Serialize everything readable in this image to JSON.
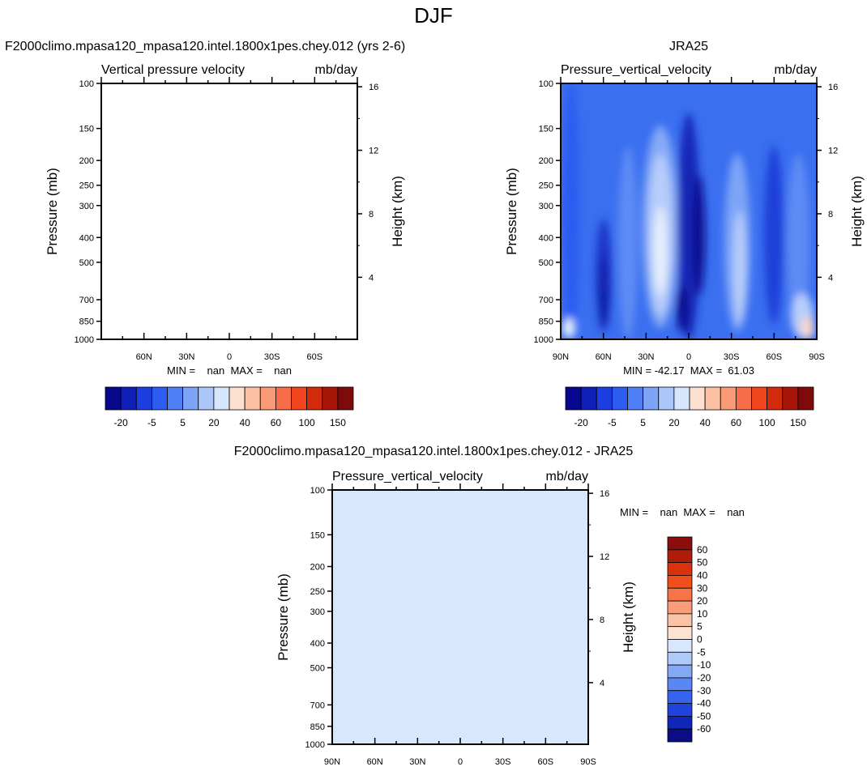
{
  "title": "DJF",
  "contour_levels": [
    "-20",
    "-5",
    "5",
    "20",
    "40",
    "60",
    "100",
    "150"
  ],
  "diff_levels": [
    "60",
    "50",
    "40",
    "30",
    "20",
    "10",
    "5",
    "0",
    "-5",
    "-10",
    "-20",
    "-30",
    "-40",
    "-50",
    "-60"
  ],
  "colors": {
    "main_scale": [
      "#08088e",
      "#0f1fb8",
      "#1c3de0",
      "#2c5cf0",
      "#4f80f5",
      "#7ea4f7",
      "#adc6fa",
      "#d6e6fc",
      "#fde0d0",
      "#fcc0a2",
      "#f99b77",
      "#f76d47",
      "#f0441c",
      "#d22a0c",
      "#a81509",
      "#7f0a0a"
    ],
    "diff_scale": [
      "#8b0d0d",
      "#b01d0b",
      "#da320c",
      "#f24e1b",
      "#f77448",
      "#f99d78",
      "#fbc3a5",
      "#fde3d3",
      "#d7e7fc",
      "#afc9f9",
      "#85a8f5",
      "#5987f3",
      "#3564ef",
      "#1f44dd",
      "#1026b6",
      "#0b0d86"
    ],
    "diff_fill": "#d7e8fc"
  },
  "chart_data": [
    {
      "type": "heatmap",
      "title": "F2000climo.mpasa120_mpasa120.intel.1800x1pes.chey.012 (yrs 2-6)",
      "left_subtitle": "Vertical pressure velocity",
      "right_subtitle": "mb/day",
      "ylabel": "Pressure (mb)",
      "ylabel_right": "Height (km)",
      "y_ticks": [
        "100",
        "150",
        "200",
        "250",
        "300",
        "400",
        "500",
        "700",
        "850",
        "1000"
      ],
      "y_ticks_right": [
        "16",
        "12",
        "8",
        "4"
      ],
      "x_ticks": [
        "60N",
        "30N",
        "0",
        "30S",
        "60S"
      ],
      "min_max": "MIN =    nan  MAX =    nan",
      "min": "nan",
      "max": "nan"
    },
    {
      "type": "heatmap",
      "title": "JRA25",
      "left_subtitle": "Pressure_vertical_velocity",
      "right_subtitle": "mb/day",
      "ylabel": "Pressure (mb)",
      "ylabel_right": "Height (km)",
      "y_ticks": [
        "100",
        "150",
        "200",
        "250",
        "300",
        "400",
        "500",
        "700",
        "850",
        "1000"
      ],
      "y_ticks_right": [
        "16",
        "12",
        "8",
        "4"
      ],
      "x_ticks": [
        "90N",
        "60N",
        "30N",
        "0",
        "30S",
        "60S",
        "90S"
      ],
      "min_max": "MIN = -42.17  MAX =  61.03",
      "min": -42.17,
      "max": 61.03
    },
    {
      "type": "heatmap",
      "title": "F2000climo.mpasa120_mpasa120.intel.1800x1pes.chey.012 - JRA25",
      "left_subtitle": "Pressure_vertical_velocity",
      "right_subtitle": "mb/day",
      "ylabel": "Pressure (mb)",
      "ylabel_right": "Height (km)",
      "y_ticks": [
        "100",
        "150",
        "200",
        "250",
        "300",
        "400",
        "500",
        "700",
        "850",
        "1000"
      ],
      "y_ticks_right": [
        "16",
        "12",
        "8",
        "4"
      ],
      "x_ticks": [
        "90N",
        "60N",
        "30N",
        "0",
        "30S",
        "60S",
        "90S"
      ],
      "min_max": "MIN =    nan  MAX =    nan",
      "min": "nan",
      "max": "nan"
    }
  ]
}
